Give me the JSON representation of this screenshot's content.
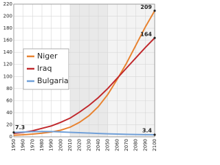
{
  "chart_data": {
    "type": "line",
    "x": [
      1950,
      1960,
      1970,
      1980,
      1990,
      2000,
      2010,
      2020,
      2030,
      2040,
      2050,
      2060,
      2070,
      2080,
      2090,
      2100
    ],
    "series": [
      {
        "name": "Niger",
        "color": "#e8822f",
        "values": [
          2.5,
          3.4,
          4.5,
          6,
          8,
          11,
          16,
          24,
          35,
          50,
          70,
          95,
          122,
          152,
          182,
          209
        ]
      },
      {
        "name": "Iraq",
        "color": "#c0282c",
        "values": [
          5.7,
          7.3,
          10,
          14,
          18,
          24,
          31,
          41,
          52,
          65,
          80,
          97,
          114,
          131,
          148,
          164
        ]
      },
      {
        "name": "Bulgaria",
        "color": "#6f9fd8",
        "values": [
          7.3,
          7.9,
          8.5,
          8.9,
          8.7,
          8.1,
          7.4,
          6.9,
          6.2,
          5.5,
          5,
          4.5,
          4.2,
          3.9,
          3.6,
          3.4
        ]
      }
    ],
    "xlim": [
      1950,
      2100
    ],
    "xticks": [
      1950,
      1960,
      1970,
      1980,
      1990,
      2000,
      2010,
      2020,
      2030,
      2040,
      2050,
      2060,
      2070,
      2080,
      2090,
      2100
    ],
    "ylim": [
      0,
      220
    ],
    "yticks": [
      0,
      20,
      40,
      60,
      80,
      100,
      120,
      140,
      160,
      180,
      200,
      220
    ],
    "grid": true,
    "legend": "left"
  }
}
